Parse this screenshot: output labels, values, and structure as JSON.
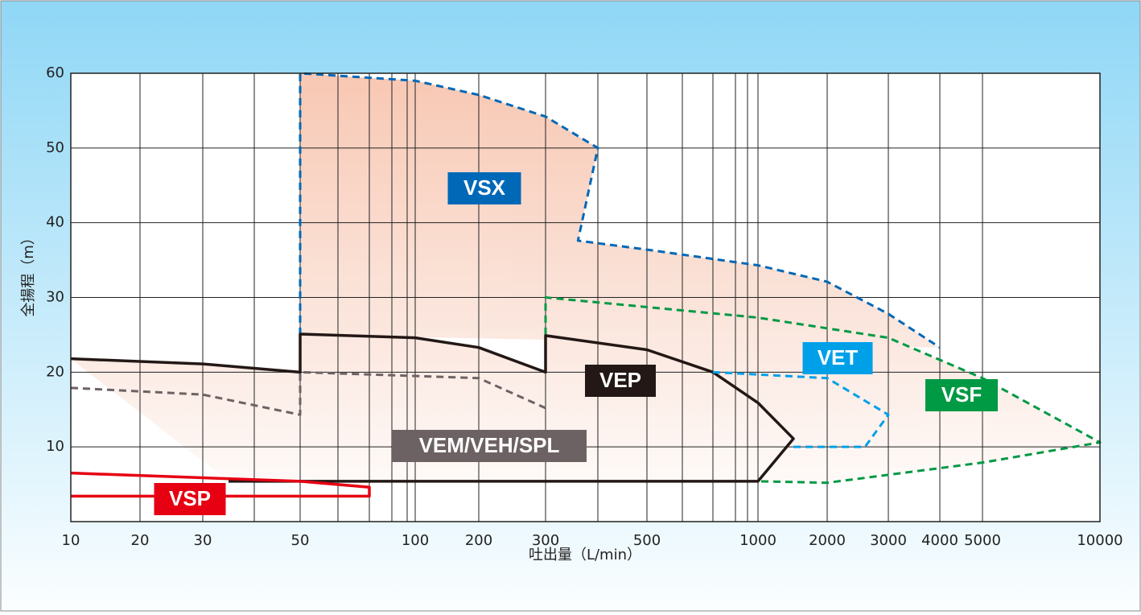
{
  "chart_data": {
    "type": "region",
    "x_label": "吐出量（L/min）",
    "y_label": "全揚程（m）",
    "xticks": [
      10,
      20,
      30,
      50,
      100,
      200,
      300,
      500,
      1000,
      2000,
      3000,
      4000,
      5000,
      10000
    ],
    "xgrid_minor": [
      40,
      60,
      70,
      80,
      90,
      400,
      600,
      700,
      800,
      900
    ],
    "xlim": [
      10,
      10000
    ],
    "ylim": [
      0,
      60
    ],
    "yticks": [
      10,
      20,
      30,
      40,
      50,
      60
    ],
    "grid": true,
    "area_fill": "#f6bea6",
    "series": [
      {
        "name": "VSX",
        "color": "#0068b7",
        "dash": true,
        "x": [
          50,
          50,
          100,
          200,
          300,
          400,
          362,
          500,
          1000,
          2000,
          3000,
          4000
        ],
        "y": [
          25,
          60,
          59,
          57.1,
          54.2,
          50,
          37.6,
          36.4,
          34.3,
          32.1,
          27.8,
          23.3
        ]
      },
      {
        "name": "VSF",
        "color": "#009944",
        "dash": true,
        "x": [
          300,
          300,
          1000,
          3000,
          5000,
          10000,
          5000,
          2000,
          1000
        ],
        "y": [
          25,
          30,
          27.3,
          24.6,
          19.2,
          10.6,
          7.9,
          5.2,
          5.4
        ]
      },
      {
        "name": "VEP",
        "color": "#231815",
        "dash": false,
        "x": [
          10,
          30,
          50,
          50,
          100,
          200,
          300,
          300,
          500,
          700,
          1000,
          1512,
          1000,
          35
        ],
        "y": [
          21.8,
          21.1,
          20,
          25.1,
          24.6,
          23.3,
          20,
          24.9,
          23,
          20,
          15.9,
          11.1,
          5.4,
          5.4
        ]
      },
      {
        "name": "VEM/VEH/SPL",
        "color": "#6d6263",
        "dash": true,
        "x": [
          10,
          30,
          50,
          50,
          200,
          300
        ],
        "y": [
          17.9,
          17,
          14.3,
          20,
          19.2,
          15.2
        ]
      },
      {
        "name": "VET",
        "color": "#00a0e9",
        "dash": true,
        "x": [
          700,
          2000,
          3000,
          2618,
          1512
        ],
        "y": [
          20,
          19.2,
          14.3,
          10,
          10
        ]
      },
      {
        "name": "VSP",
        "color": "#e60012",
        "dash": false,
        "x": [
          10,
          50,
          70,
          70,
          10
        ],
        "y": [
          6.5,
          5.4,
          4.6,
          3.4,
          3.4
        ]
      }
    ]
  }
}
